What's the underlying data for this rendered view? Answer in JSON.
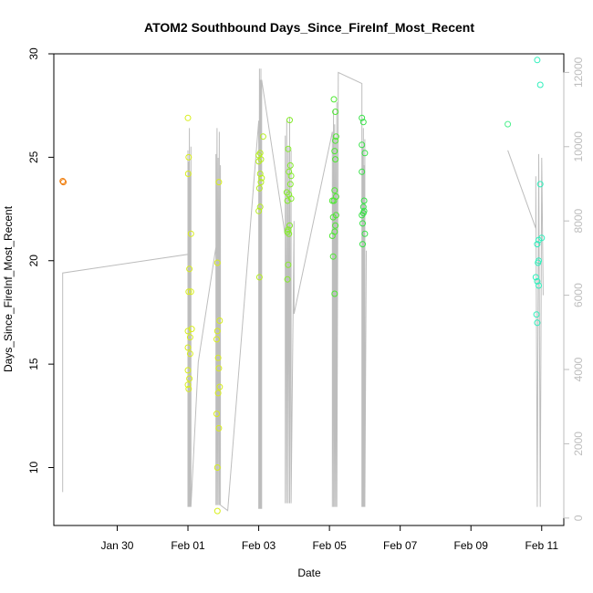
{
  "chart_data": {
    "type": "scatter",
    "title": "ATOM2 Southbound Days_Since_FireInf_Most_Recent",
    "xlabel": "Date",
    "ylabel": "Days_Since_FireInf_Most_Recent",
    "xlim": [
      "2025-01-28T05:00",
      "2025-02-11T15:00"
    ],
    "ylim": [
      7.2,
      30.0
    ],
    "y2lim": [
      -200,
      12500
    ],
    "x_ticks": [
      {
        "date": "2025-01-30",
        "label": "Jan 30"
      },
      {
        "date": "2025-02-01",
        "label": "Feb 01"
      },
      {
        "date": "2025-02-03",
        "label": "Feb 03"
      },
      {
        "date": "2025-02-05",
        "label": "Feb 05"
      },
      {
        "date": "2025-02-07",
        "label": "Feb 07"
      },
      {
        "date": "2025-02-09",
        "label": "Feb 09"
      },
      {
        "date": "2025-02-11",
        "label": "Feb 11"
      }
    ],
    "y_ticks": [
      10,
      15,
      20,
      25,
      30
    ],
    "y2_ticks": [
      0,
      2000,
      4000,
      6000,
      8000,
      10000,
      12000
    ],
    "grid": false,
    "legend": "none",
    "line_color": "#bdbdbd",
    "series": [
      {
        "color": "#f07f10",
        "points": [
          [
            "2025-01-28T11:00",
            23.85
          ],
          [
            "2025-01-28T11:30",
            23.8
          ]
        ]
      },
      {
        "color": "#d8ee1c",
        "points": [
          [
            "2025-02-01T00:00",
            26.9
          ],
          [
            "2025-02-01T00:30",
            25.0
          ],
          [
            "2025-02-01T00:10",
            24.2
          ],
          [
            "2025-02-01T02:00",
            21.3
          ],
          [
            "2025-02-01T01:00",
            19.6
          ],
          [
            "2025-02-01T00:30",
            18.5
          ],
          [
            "2025-02-01T02:00",
            18.5
          ],
          [
            "2025-02-01T00:00",
            16.6
          ],
          [
            "2025-02-01T02:30",
            16.7
          ],
          [
            "2025-02-01T01:30",
            16.3
          ],
          [
            "2025-02-01T00:00",
            15.8
          ],
          [
            "2025-02-01T01:30",
            15.5
          ],
          [
            "2025-02-01T00:00",
            14.7
          ],
          [
            "2025-02-01T00:00",
            14.0
          ],
          [
            "2025-02-01T01:00",
            14.3
          ],
          [
            "2025-02-01T00:30",
            13.8
          ],
          [
            "2025-02-01T21:00",
            23.8
          ],
          [
            "2025-02-01T20:00",
            19.9
          ],
          [
            "2025-02-01T21:30",
            17.1
          ],
          [
            "2025-02-01T20:00",
            16.6
          ],
          [
            "2025-02-01T19:30",
            16.2
          ],
          [
            "2025-02-01T20:30",
            15.3
          ],
          [
            "2025-02-01T21:00",
            14.8
          ],
          [
            "2025-02-01T21:30",
            13.9
          ],
          [
            "2025-02-01T20:30",
            13.6
          ],
          [
            "2025-02-01T19:30",
            12.6
          ],
          [
            "2025-02-01T21:00",
            11.9
          ],
          [
            "2025-02-01T20:00",
            10.0
          ],
          [
            "2025-02-01T20:00",
            7.9
          ]
        ]
      },
      {
        "color": "#b6ee20",
        "points": [
          [
            "2025-02-03T03:00",
            26.0
          ],
          [
            "2025-02-03T00:00",
            25.1
          ],
          [
            "2025-02-03T01:00",
            25.2
          ],
          [
            "2025-02-03T00:00",
            24.8
          ],
          [
            "2025-02-03T01:30",
            24.9
          ],
          [
            "2025-02-03T01:00",
            24.2
          ],
          [
            "2025-02-03T02:00",
            24.0
          ],
          [
            "2025-02-03T01:30",
            23.8
          ],
          [
            "2025-02-03T00:30",
            23.5
          ],
          [
            "2025-02-03T01:00",
            22.6
          ],
          [
            "2025-02-03T00:00",
            22.4
          ],
          [
            "2025-02-03T00:30",
            19.2
          ]
        ]
      },
      {
        "color": "#84ec2a",
        "points": [
          [
            "2025-02-03T21:00",
            26.8
          ],
          [
            "2025-02-03T20:00",
            25.4
          ],
          [
            "2025-02-03T21:30",
            24.6
          ],
          [
            "2025-02-03T20:30",
            24.3
          ],
          [
            "2025-02-03T22:00",
            24.1
          ],
          [
            "2025-02-03T21:30",
            23.7
          ],
          [
            "2025-02-03T19:00",
            23.3
          ],
          [
            "2025-02-03T20:30",
            23.2
          ],
          [
            "2025-02-03T19:30",
            22.9
          ],
          [
            "2025-02-03T22:00",
            23.0
          ],
          [
            "2025-02-03T21:00",
            21.7
          ],
          [
            "2025-02-03T19:30",
            21.4
          ],
          [
            "2025-02-03T20:00",
            21.5
          ],
          [
            "2025-02-03T20:30",
            21.3
          ],
          [
            "2025-02-03T20:00",
            19.8
          ],
          [
            "2025-02-03T19:30",
            19.1
          ]
        ]
      },
      {
        "color": "#4ee832",
        "points": [
          [
            "2025-02-05T03:00",
            27.8
          ],
          [
            "2025-02-05T04:00",
            27.2
          ],
          [
            "2025-02-05T04:30",
            26.0
          ],
          [
            "2025-02-05T04:00",
            25.8
          ],
          [
            "2025-02-05T03:30",
            25.3
          ],
          [
            "2025-02-05T04:00",
            24.9
          ],
          [
            "2025-02-05T03:30",
            23.4
          ],
          [
            "2025-02-05T04:30",
            23.1
          ],
          [
            "2025-02-05T02:00",
            22.9
          ],
          [
            "2025-02-05T03:00",
            22.9
          ],
          [
            "2025-02-05T04:30",
            22.2
          ],
          [
            "2025-02-05T02:30",
            22.1
          ],
          [
            "2025-02-05T04:00",
            21.7
          ],
          [
            "2025-02-05T03:30",
            21.4
          ],
          [
            "2025-02-05T02:00",
            21.2
          ],
          [
            "2025-02-05T02:30",
            20.2
          ],
          [
            "2025-02-05T03:30",
            18.4
          ]
        ]
      },
      {
        "color": "#36e246",
        "points": [
          [
            "2025-02-05T22:00",
            26.9
          ],
          [
            "2025-02-05T23:00",
            26.7
          ],
          [
            "2025-02-05T22:00",
            25.6
          ],
          [
            "2025-02-06T00:00",
            25.2
          ],
          [
            "2025-02-05T22:00",
            24.3
          ],
          [
            "2025-02-05T23:30",
            22.9
          ],
          [
            "2025-02-05T23:00",
            22.6
          ],
          [
            "2025-02-05T23:30",
            22.4
          ],
          [
            "2025-02-05T22:00",
            22.2
          ],
          [
            "2025-02-05T23:00",
            22.3
          ],
          [
            "2025-02-05T22:30",
            21.8
          ],
          [
            "2025-02-06T00:00",
            21.3
          ],
          [
            "2025-02-05T22:30",
            20.8
          ]
        ]
      },
      {
        "color": "#4ef08e",
        "points": [
          [
            "2025-02-10T01:00",
            26.6
          ]
        ]
      },
      {
        "color": "#2ff0bc",
        "points": [
          [
            "2025-02-10T21:00",
            29.7
          ],
          [
            "2025-02-10T23:00",
            28.5
          ],
          [
            "2025-02-10T23:00",
            23.7
          ],
          [
            "2025-02-11T00:00",
            21.1
          ],
          [
            "2025-02-10T22:00",
            21.0
          ],
          [
            "2025-02-10T21:00",
            20.8
          ],
          [
            "2025-02-10T22:00",
            20.0
          ],
          [
            "2025-02-10T21:30",
            19.9
          ],
          [
            "2025-02-10T20:00",
            19.2
          ],
          [
            "2025-02-10T21:00",
            19.0
          ],
          [
            "2025-02-10T22:00",
            18.8
          ],
          [
            "2025-02-10T20:30",
            17.4
          ],
          [
            "2025-02-10T21:00",
            17.0
          ]
        ]
      }
    ]
  }
}
